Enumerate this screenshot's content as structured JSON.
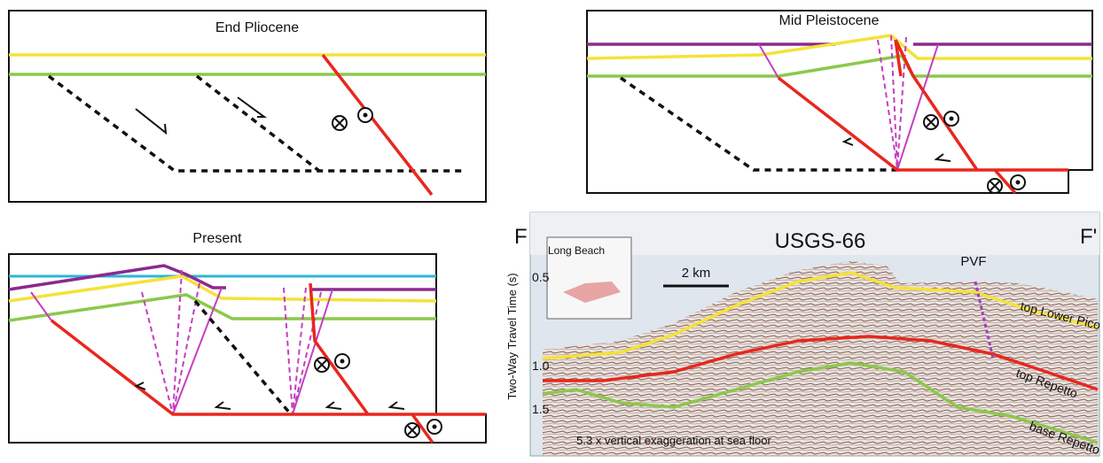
{
  "panels": [
    {
      "title": "End Pliocene"
    },
    {
      "title": "Mid Pleistocene"
    },
    {
      "title": "Present"
    }
  ],
  "seismic": {
    "left_label": "F",
    "title": "USGS-66",
    "right_label": "F'",
    "inset_label": "Long Beach",
    "scale_bar": "2 km",
    "fault_label": "PVF",
    "y_axis_label": "Two-Way Travel Time (s)",
    "y_ticks": [
      "0.5",
      "1.0",
      "1.5"
    ],
    "horizons": [
      "top Lower Pico",
      "top Repetto",
      "base Repetto"
    ],
    "note": "5.3 x vertical exaggeration at sea floor"
  }
}
